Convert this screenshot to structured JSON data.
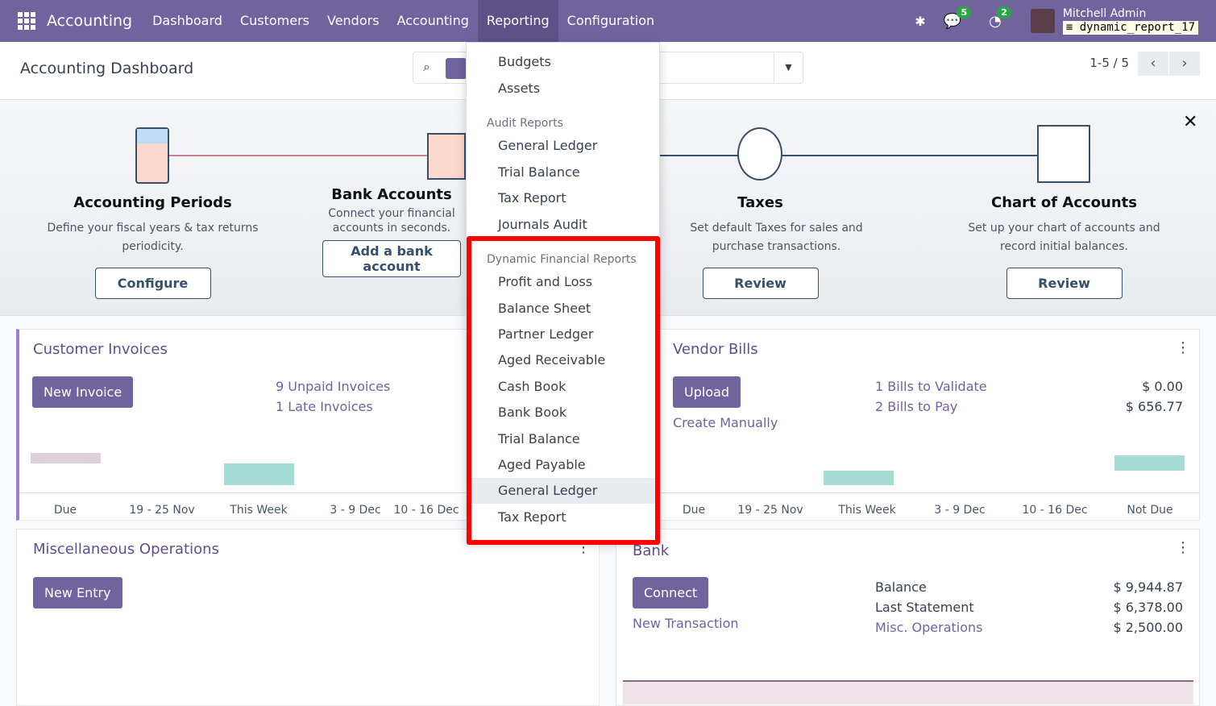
{
  "navbar": {
    "app": "Accounting",
    "menus": [
      "Dashboard",
      "Customers",
      "Vendors",
      "Accounting",
      "Reporting",
      "Configuration"
    ],
    "messages_count": "5",
    "activities_count": "2",
    "user": "Mitchell Admin",
    "database": "dynamic_report_17",
    "color": "#71639e"
  },
  "control_panel": {
    "title": "Accounting Dashboard",
    "pager": "1-5 / 5"
  },
  "onboarding": [
    {
      "title": "Accounting Periods",
      "desc": "Define your fiscal years & tax returns periodicity.",
      "button": "Configure"
    },
    {
      "title": "Bank Accounts",
      "desc": "Connect your financial accounts in seconds.",
      "button": "Add a bank account"
    },
    {
      "title": "Taxes",
      "desc": "Set default Taxes for sales and purchase transactions.",
      "button": "Review"
    },
    {
      "title": "Chart of Accounts",
      "desc": "Set up your chart of accounts and record initial balances.",
      "button": "Review"
    }
  ],
  "customer_invoices": {
    "title": "Customer Invoices",
    "button": "New Invoice",
    "links": [
      "9 Unpaid Invoices",
      "1 Late Invoices"
    ],
    "ticks": [
      "Due",
      "19 - 25 Nov",
      "This Week",
      "3 - 9 Dec",
      "10 - 16 Dec"
    ]
  },
  "vendor_bills": {
    "title": "Vendor Bills",
    "button": "Upload",
    "manual": "Create Manually",
    "rows": [
      {
        "label": "1 Bills to Validate",
        "value": "$ 0.00"
      },
      {
        "label": "2 Bills to Pay",
        "value": "$ 656.77"
      }
    ],
    "ticks": [
      "Due",
      "19 - 25 Nov",
      "This Week",
      "3 - 9 Dec",
      "10 - 16 Dec",
      "Not Due"
    ]
  },
  "misc": {
    "title": "Miscellaneous Operations",
    "button": "New Entry"
  },
  "bank": {
    "title": "Bank",
    "button": "Connect",
    "link": "New Transaction",
    "rows": [
      {
        "label": "Balance",
        "value": "$ 9,944.87"
      },
      {
        "label": "Last Statement",
        "value": "$ 6,378.00"
      },
      {
        "label": "Misc. Operations",
        "value": "$ 2,500.00"
      }
    ]
  },
  "dropdown": {
    "items_top": [
      "Budgets",
      "Assets"
    ],
    "audit_header": "Audit Reports",
    "audit": [
      "General Ledger",
      "Trial Balance",
      "Tax Report",
      "Journals Audit"
    ],
    "dynamic_header": "Dynamic Financial Reports",
    "dynamic": [
      "Profit and Loss",
      "Balance Sheet",
      "Partner Ledger",
      "Aged Receivable",
      "Cash Book",
      "Bank Book",
      "Trial Balance",
      "Aged Payable",
      "General Ledger",
      "Tax Report"
    ],
    "highlighted": "General Ledger"
  }
}
